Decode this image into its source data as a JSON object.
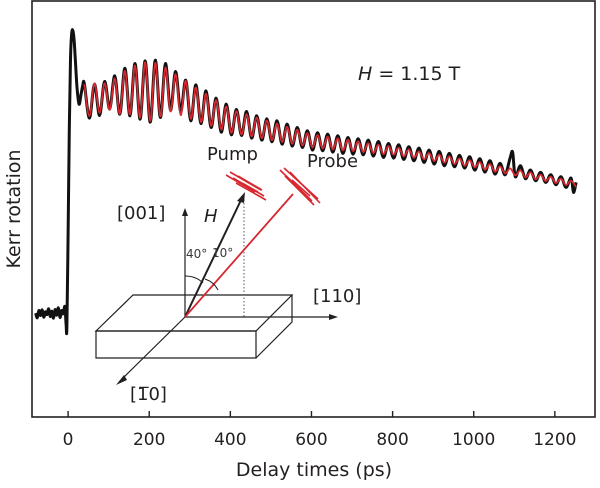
{
  "chart_data": {
    "type": "line",
    "title": "",
    "xlabel": "Delay times (ps)",
    "ylabel": "Kerr rotation",
    "xlim": [
      -89,
      1299
    ],
    "ylim": [
      -0.25,
      1.0
    ],
    "xticks": [
      0,
      200,
      400,
      600,
      800,
      1000,
      1200
    ],
    "yticks": [],
    "grid": false,
    "legend": "none",
    "annotation": {
      "field_italic": "H",
      "field_rest": " = 1.15 T"
    },
    "colors": {
      "data": "#111111",
      "fit": "#d7282f",
      "axis": "#231f20"
    },
    "series": [
      {
        "name": "measured",
        "color": "#111111",
        "points": [
          [
            -80,
            0.062
          ],
          [
            -76,
            0.048
          ],
          [
            -72,
            0.07
          ],
          [
            -68,
            0.055
          ],
          [
            -64,
            0.072
          ],
          [
            -60,
            0.05
          ],
          [
            -56,
            0.066
          ],
          [
            -52,
            0.058
          ],
          [
            -48,
            0.075
          ],
          [
            -44,
            0.052
          ],
          [
            -40,
            0.068
          ],
          [
            -36,
            0.047
          ],
          [
            -32,
            0.073
          ],
          [
            -28,
            0.056
          ],
          [
            -24,
            0.078
          ],
          [
            -20,
            0.049
          ],
          [
            -16,
            0.07
          ],
          [
            -12,
            0.06
          ],
          [
            -8,
            0.082
          ],
          [
            -5,
            0.03
          ],
          [
            -3,
            0.02
          ],
          [
            0,
            0.3
          ],
          [
            3,
            0.62
          ],
          [
            6,
            0.83
          ],
          [
            9,
            0.905
          ],
          [
            12,
            0.91
          ],
          [
            15,
            0.88
          ],
          [
            18,
            0.82
          ],
          [
            22,
            0.74
          ],
          [
            27,
            0.69
          ],
          [
            32,
            0.72
          ],
          [
            36,
            0.745
          ],
          [
            40,
            0.752
          ],
          [
            52.5,
            0.648
          ],
          [
            65,
            0.75
          ],
          [
            77.5,
            0.656
          ],
          [
            90,
            0.758
          ],
          [
            102.5,
            0.676
          ],
          [
            115,
            0.775
          ],
          [
            127.5,
            0.66
          ],
          [
            140,
            0.798
          ],
          [
            152.5,
            0.655
          ],
          [
            165,
            0.812
          ],
          [
            177.5,
            0.645
          ],
          [
            190,
            0.82
          ],
          [
            202.5,
            0.636
          ],
          [
            215,
            0.822
          ],
          [
            227.5,
            0.65
          ],
          [
            240,
            0.812
          ],
          [
            252.5,
            0.672
          ],
          [
            265,
            0.788
          ],
          [
            277.5,
            0.668
          ],
          [
            290,
            0.762
          ],
          [
            302.5,
            0.64
          ],
          [
            315,
            0.748
          ],
          [
            327.5,
            0.632
          ],
          [
            340,
            0.73
          ],
          [
            352.5,
            0.62
          ],
          [
            365,
            0.708
          ],
          [
            377.5,
            0.606
          ],
          [
            390,
            0.69
          ],
          [
            402.5,
            0.598
          ],
          [
            415,
            0.674
          ],
          [
            427.5,
            0.596
          ],
          [
            440,
            0.668
          ],
          [
            452.5,
            0.588
          ],
          [
            465,
            0.655
          ],
          [
            477.5,
            0.582
          ],
          [
            490,
            0.646
          ],
          [
            502.5,
            0.577
          ],
          [
            515,
            0.64
          ],
          [
            527.5,
            0.57
          ],
          [
            540,
            0.63
          ],
          [
            552.5,
            0.564
          ],
          [
            565,
            0.62
          ],
          [
            577.5,
            0.56
          ],
          [
            590,
            0.61
          ],
          [
            602.5,
            0.552
          ],
          [
            615,
            0.604
          ],
          [
            627.5,
            0.55
          ],
          [
            640,
            0.6
          ],
          [
            652.5,
            0.546
          ],
          [
            665,
            0.595
          ],
          [
            677.5,
            0.542
          ],
          [
            690,
            0.59
          ],
          [
            702.5,
            0.54
          ],
          [
            715,
            0.586
          ],
          [
            727.5,
            0.538
          ],
          [
            740,
            0.582
          ],
          [
            752.5,
            0.534
          ],
          [
            765,
            0.578
          ],
          [
            777.5,
            0.53
          ],
          [
            790,
            0.572
          ],
          [
            802.5,
            0.528
          ],
          [
            815,
            0.568
          ],
          [
            827.5,
            0.524
          ],
          [
            840,
            0.562
          ],
          [
            852.5,
            0.52
          ],
          [
            865,
            0.558
          ],
          [
            877.5,
            0.515
          ],
          [
            890,
            0.552
          ],
          [
            902.5,
            0.51
          ],
          [
            915,
            0.548
          ],
          [
            927.5,
            0.505
          ],
          [
            940,
            0.542
          ],
          [
            952.5,
            0.502
          ],
          [
            965,
            0.536
          ],
          [
            977.5,
            0.498
          ],
          [
            990,
            0.532
          ],
          [
            1002.5,
            0.492
          ],
          [
            1015,
            0.526
          ],
          [
            1027.5,
            0.486
          ],
          [
            1040,
            0.52
          ],
          [
            1052.5,
            0.48
          ],
          [
            1065,
            0.512
          ],
          [
            1077.5,
            0.478
          ],
          [
            1090,
            0.53
          ],
          [
            1096,
            0.545
          ],
          [
            1102.5,
            0.472
          ],
          [
            1115,
            0.505
          ],
          [
            1127.5,
            0.466
          ],
          [
            1140,
            0.492
          ],
          [
            1152.5,
            0.46
          ],
          [
            1165,
            0.485
          ],
          [
            1177.5,
            0.455
          ],
          [
            1190,
            0.478
          ],
          [
            1202.5,
            0.448
          ],
          [
            1215,
            0.472
          ],
          [
            1227.5,
            0.44
          ],
          [
            1240,
            0.468
          ],
          [
            1246,
            0.425
          ],
          [
            1252.5,
            0.455
          ]
        ]
      },
      {
        "name": "fit",
        "color": "#d7282f",
        "points": [
          [
            40,
            0.75
          ],
          [
            52.5,
            0.655
          ],
          [
            65,
            0.752
          ],
          [
            77.5,
            0.664
          ],
          [
            90,
            0.753
          ],
          [
            102.5,
            0.673
          ],
          [
            115,
            0.767
          ],
          [
            127.5,
            0.661
          ],
          [
            140,
            0.79
          ],
          [
            152.5,
            0.659
          ],
          [
            165,
            0.806
          ],
          [
            177.5,
            0.649
          ],
          [
            190,
            0.816
          ],
          [
            202.5,
            0.64
          ],
          [
            215,
            0.814
          ],
          [
            227.5,
            0.653
          ],
          [
            240,
            0.8
          ],
          [
            252.5,
            0.668
          ],
          [
            265,
            0.78
          ],
          [
            277.5,
            0.657
          ],
          [
            290,
            0.76
          ],
          [
            302.5,
            0.646
          ],
          [
            315,
            0.74
          ],
          [
            327.5,
            0.636
          ],
          [
            340,
            0.721
          ],
          [
            352.5,
            0.625
          ],
          [
            365,
            0.702
          ],
          [
            377.5,
            0.614
          ],
          [
            390,
            0.683
          ],
          [
            402.5,
            0.604
          ],
          [
            415,
            0.669
          ],
          [
            427.5,
            0.599
          ],
          [
            440,
            0.66
          ],
          [
            452.5,
            0.593
          ],
          [
            465,
            0.65
          ],
          [
            477.5,
            0.588
          ],
          [
            490,
            0.641
          ],
          [
            502.5,
            0.582
          ],
          [
            515,
            0.632
          ],
          [
            527.5,
            0.577
          ],
          [
            540,
            0.622
          ],
          [
            552.5,
            0.571
          ],
          [
            565,
            0.613
          ],
          [
            577.5,
            0.566
          ],
          [
            590,
            0.603
          ],
          [
            602.5,
            0.56
          ],
          [
            615,
            0.597
          ],
          [
            627.5,
            0.557
          ],
          [
            640,
            0.592
          ],
          [
            652.5,
            0.554
          ],
          [
            665,
            0.587
          ],
          [
            677.5,
            0.551
          ],
          [
            690,
            0.583
          ],
          [
            702.5,
            0.549
          ],
          [
            715,
            0.578
          ],
          [
            727.5,
            0.546
          ],
          [
            740,
            0.573
          ],
          [
            752.5,
            0.543
          ],
          [
            765,
            0.568
          ],
          [
            777.5,
            0.54
          ],
          [
            790,
            0.564
          ],
          [
            802.5,
            0.538
          ],
          [
            815,
            0.559
          ],
          [
            827.5,
            0.533
          ],
          [
            840,
            0.554
          ],
          [
            852.5,
            0.529
          ],
          [
            865,
            0.548
          ],
          [
            877.5,
            0.524
          ],
          [
            890,
            0.543
          ],
          [
            902.5,
            0.519
          ],
          [
            915,
            0.538
          ],
          [
            927.5,
            0.514
          ],
          [
            940,
            0.533
          ],
          [
            952.5,
            0.51
          ],
          [
            965,
            0.527
          ],
          [
            977.5,
            0.505
          ],
          [
            990,
            0.522
          ],
          [
            1002.5,
            0.5
          ],
          [
            1015,
            0.516
          ],
          [
            1027.5,
            0.493
          ],
          [
            1040,
            0.51
          ],
          [
            1052.5,
            0.487
          ],
          [
            1065,
            0.503
          ],
          [
            1077.5,
            0.482
          ],
          [
            1090,
            0.497
          ],
          [
            1102.5,
            0.476
          ],
          [
            1115,
            0.491
          ],
          [
            1127.5,
            0.47
          ],
          [
            1140,
            0.485
          ],
          [
            1152.5,
            0.464
          ],
          [
            1165,
            0.478
          ],
          [
            1177.5,
            0.459
          ],
          [
            1190,
            0.472
          ],
          [
            1202.5,
            0.453
          ],
          [
            1215,
            0.466
          ],
          [
            1227.5,
            0.447
          ],
          [
            1240,
            0.46
          ],
          [
            1252.5,
            0.441
          ]
        ]
      }
    ]
  },
  "inset": {
    "labels": {
      "pump": "Pump",
      "probe": "Probe",
      "axis_001": "[001]",
      "axis_110": "[110]",
      "axis_1bar10": "[1̅0]",
      "field": "H",
      "angle_field": "40°",
      "angle_probe": "10°"
    }
  }
}
